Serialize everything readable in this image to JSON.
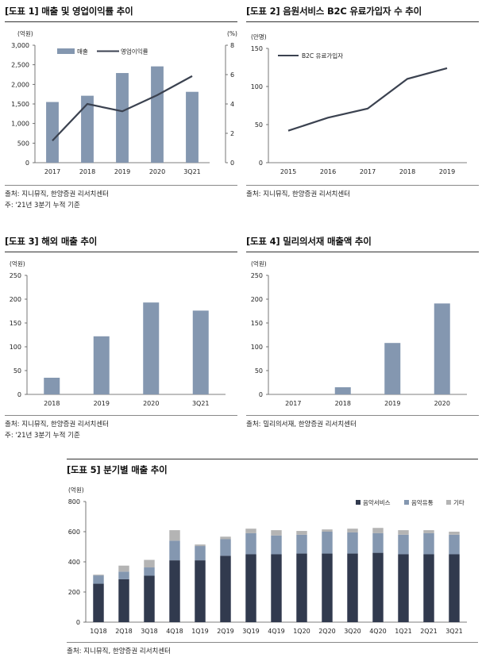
{
  "colors": {
    "bar": "#8497b0",
    "bar_dark": "#313a4e",
    "bar_light": "#b4b4b4",
    "line": "#3b4250",
    "axis": "#555555"
  },
  "fig1": {
    "title": "[도표 1] 매출 및 영업이익률 추이",
    "source": "출처: 지니뮤직, 한양증권 리서치센터",
    "note": "주: '21년 3분기 누적 기준"
  },
  "fig2": {
    "title": "[도표 2] 음원서비스 B2C 유료가입자 수 추이",
    "source": "출처: 지니뮤직, 한양증권 리서치센터"
  },
  "fig3": {
    "title": "[도표 3] 해외 매출 추이",
    "source": "출처: 지니뮤직, 한양증권 리서치센터",
    "note": "주: '21년 3분기 누적 기준"
  },
  "fig4": {
    "title": "[도표 4] 밀리의서재 매출액 추이",
    "source": "출처: 밀리의서재, 한양증권 리서치센터"
  },
  "fig5": {
    "title": "[도표 5] 분기별 매출 추이",
    "source": "출처: 지니뮤직, 한양증권 리서치센터"
  },
  "chart_data": [
    {
      "type": "bar",
      "categories": [
        "2017",
        "2018",
        "2019",
        "2020",
        "3Q21"
      ],
      "series": [
        {
          "name": "매출",
          "type": "bar",
          "axis": "left",
          "values": [
            1550,
            1710,
            2290,
            2460,
            1810
          ]
        },
        {
          "name": "영업이익률",
          "type": "line",
          "axis": "right",
          "values": [
            1.5,
            4.0,
            3.5,
            4.6,
            5.9
          ]
        }
      ],
      "ylabel": "(억원)",
      "ylim": [
        0,
        3000
      ],
      "yticks": [
        "0",
        "500",
        "1,000",
        "1,500",
        "2,000",
        "2,500",
        "3,000"
      ],
      "y2label": "(%)",
      "y2lim": [
        0,
        8
      ],
      "y2ticks": [
        "0",
        "2",
        "4",
        "6",
        "8"
      ],
      "legend": "top-left"
    },
    {
      "type": "line",
      "categories": [
        "2015",
        "2016",
        "2017",
        "2018",
        "2019"
      ],
      "series": [
        {
          "name": "B2C 유료가입자",
          "values": [
            42,
            59,
            71,
            110,
            124
          ]
        }
      ],
      "ylabel": "(만명)",
      "ylim": [
        0,
        150
      ],
      "yticks": [
        "0",
        "50",
        "100",
        "150"
      ],
      "legend": "top-left"
    },
    {
      "type": "bar",
      "categories": [
        "2018",
        "2019",
        "2020",
        "3Q21"
      ],
      "values": [
        35,
        122,
        193,
        176
      ],
      "ylabel": "(억원)",
      "ylim": [
        0,
        250
      ],
      "yticks": [
        "0",
        "50",
        "100",
        "150",
        "200",
        "250"
      ]
    },
    {
      "type": "bar",
      "categories": [
        "2017",
        "2018",
        "2019",
        "2020"
      ],
      "values": [
        0,
        15,
        108,
        191
      ],
      "ylabel": "(억원)",
      "ylim": [
        0,
        250
      ],
      "yticks": [
        "0",
        "50",
        "100",
        "150",
        "200",
        "250"
      ]
    },
    {
      "type": "bar",
      "stacked": true,
      "categories": [
        "1Q18",
        "2Q18",
        "3Q18",
        "4Q18",
        "1Q19",
        "2Q19",
        "3Q19",
        "4Q19",
        "1Q20",
        "2Q20",
        "3Q20",
        "4Q20",
        "1Q21",
        "2Q21",
        "3Q21"
      ],
      "series": [
        {
          "name": "음악서비스",
          "values": [
            255,
            285,
            308,
            410,
            410,
            440,
            450,
            450,
            455,
            455,
            455,
            460,
            450,
            450,
            450
          ]
        },
        {
          "name": "음악유통",
          "values": [
            55,
            50,
            55,
            130,
            95,
            110,
            140,
            125,
            125,
            145,
            140,
            130,
            130,
            140,
            130
          ]
        },
        {
          "name": "기타",
          "values": [
            5,
            40,
            50,
            70,
            10,
            17,
            30,
            35,
            25,
            15,
            25,
            35,
            30,
            20,
            20
          ]
        }
      ],
      "ylabel": "(억원)",
      "ylim": [
        0,
        800
      ],
      "yticks": [
        "0",
        "200",
        "400",
        "600",
        "800"
      ],
      "legend": "top-right"
    }
  ]
}
